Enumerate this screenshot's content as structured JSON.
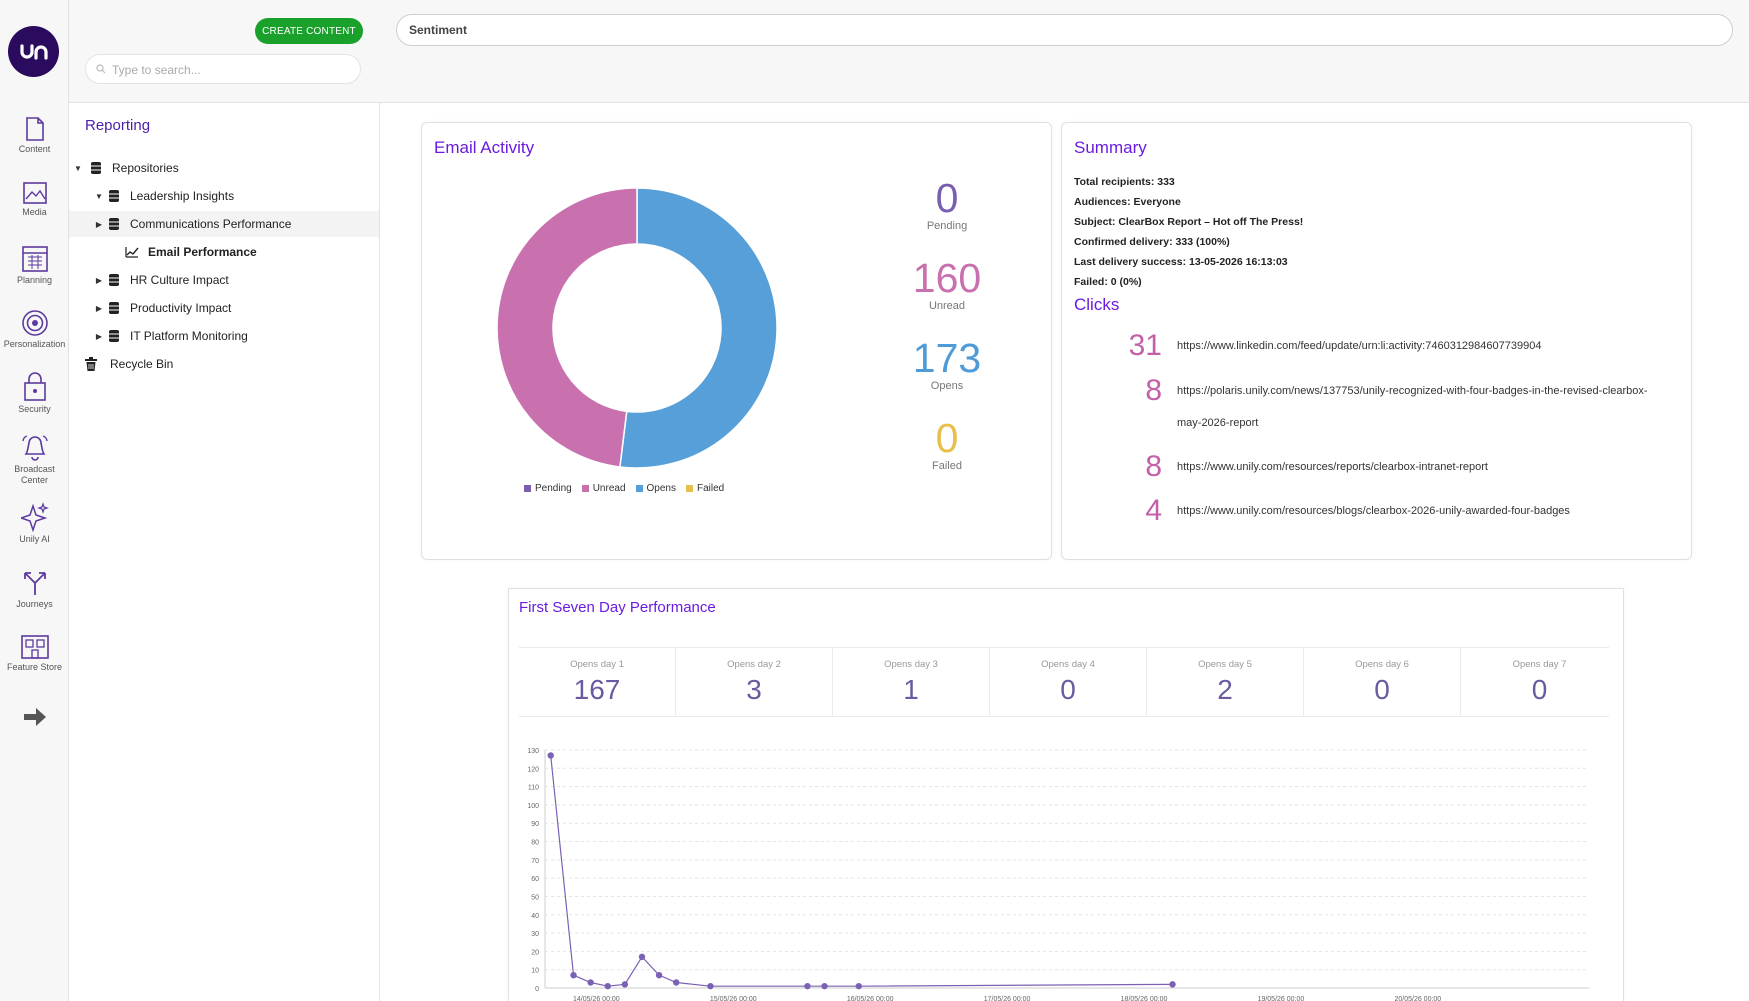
{
  "rail": {
    "items": [
      {
        "label": "Content",
        "icon": "document-icon"
      },
      {
        "label": "Media",
        "icon": "image-icon"
      },
      {
        "label": "Planning",
        "icon": "calendar-icon"
      },
      {
        "label": "Personalization",
        "icon": "target-icon"
      },
      {
        "label": "Security",
        "icon": "lock-icon"
      },
      {
        "label": "Broadcast Center",
        "icon": "bell-icon"
      },
      {
        "label": "Unily AI",
        "icon": "sparkle-icon"
      },
      {
        "label": "Journeys",
        "icon": "journey-icon"
      },
      {
        "label": "Feature Store",
        "icon": "store-icon"
      }
    ],
    "expand_icon": "arrow-right-icon"
  },
  "tree": {
    "create_label": "CREATE CONTENT",
    "search_placeholder": "Type to search...",
    "title": "Reporting",
    "nodes": [
      {
        "label": "Repositories"
      },
      {
        "label": "Leadership Insights"
      },
      {
        "label": "Communications Performance"
      },
      {
        "label": "Email Performance"
      },
      {
        "label": "HR Culture Impact"
      },
      {
        "label": "Productivity Impact"
      },
      {
        "label": "IT Platform Monitoring"
      },
      {
        "label": "Recycle Bin"
      }
    ]
  },
  "topbar": {
    "search_value": "Sentiment"
  },
  "email_activity": {
    "title": "Email Activity",
    "stats": [
      {
        "value": "0",
        "label": "Pending",
        "color": "#7a5fb0"
      },
      {
        "value": "160",
        "label": "Unread",
        "color": "#c970ae"
      },
      {
        "value": "173",
        "label": "Opens",
        "color": "#4f9bd7"
      },
      {
        "value": "0",
        "label": "Failed",
        "color": "#e9bf4c"
      }
    ],
    "legend": [
      {
        "label": "Pending",
        "color": "#7a5fb0"
      },
      {
        "label": "Unread",
        "color": "#c970ae"
      },
      {
        "label": "Opens",
        "color": "#569fd8"
      },
      {
        "label": "Failed",
        "color": "#e9bf4c"
      }
    ]
  },
  "summary": {
    "title": "Summary",
    "lines": [
      "Total recipients: 333",
      "Audiences: Everyone",
      "Subject: ClearBox Report – Hot off The Press!",
      "Confirmed delivery: 333 (100%)",
      "Last delivery success: 13-05-2026 16:13:03",
      "Failed: 0 (0%)"
    ],
    "clicks_title": "Clicks",
    "clicks": [
      {
        "count": "31",
        "url": "https://www.linkedin.com/feed/update/urn:li:activity:7460312984607739904"
      },
      {
        "count": "8",
        "url": "https://polaris.unily.com/news/137753/unily-recognized-with-four-badges-in-the-revised-clearbox-",
        "url2": "may-2026-report"
      },
      {
        "count": "8",
        "url": "https://www.unily.com/resources/reports/clearbox-intranet-report"
      },
      {
        "count": "4",
        "url": "https://www.unily.com/resources/blogs/clearbox-2026-unily-awarded-four-badges"
      }
    ]
  },
  "performance": {
    "title": "First Seven Day Performance",
    "days": [
      {
        "label": "Opens day 1",
        "value": "167"
      },
      {
        "label": "Opens day 2",
        "value": "3"
      },
      {
        "label": "Opens day 3",
        "value": "1"
      },
      {
        "label": "Opens day 4",
        "value": "0"
      },
      {
        "label": "Opens day 5",
        "value": "2"
      },
      {
        "label": "Opens day 6",
        "value": "0"
      },
      {
        "label": "Opens day 7",
        "value": "0"
      }
    ]
  },
  "chart_data": [
    {
      "type": "pie",
      "title": "Email Activity",
      "categories": [
        "Pending",
        "Unread",
        "Opens",
        "Failed"
      ],
      "values": [
        0,
        160,
        173,
        0
      ],
      "colors": [
        "#7a5fb0",
        "#c970ae",
        "#569fd8",
        "#e9bf4c"
      ],
      "legend": "bottom"
    },
    {
      "type": "line",
      "title": "",
      "xlabel": "",
      "ylabel": "",
      "ylim": [
        0,
        130
      ],
      "yticks": [
        0,
        10,
        20,
        30,
        40,
        50,
        60,
        70,
        80,
        90,
        100,
        110,
        120,
        130
      ],
      "xticks": [
        "14/05/26 00:00",
        "15/05/26 00:00",
        "16/05/26 00:00",
        "17/05/26 00:00",
        "18/05/26 00:00",
        "19/05/26 00:00",
        "20/05/26 00:00"
      ],
      "grid": true,
      "color": "#7b61b4",
      "x": [
        "13/05/26 16:00",
        "13/05/26 20:00",
        "13/05/26 23:00",
        "14/05/26 02:00",
        "14/05/26 05:00",
        "14/05/26 08:00",
        "14/05/26 11:00",
        "14/05/26 14:00",
        "14/05/26 20:00",
        "15/05/26 13:00",
        "15/05/26 16:00",
        "15/05/26 22:00",
        "18/05/26 05:00"
      ],
      "values": [
        127,
        7,
        3,
        1,
        2,
        17,
        7,
        3,
        1,
        1,
        1,
        1,
        2
      ]
    }
  ]
}
